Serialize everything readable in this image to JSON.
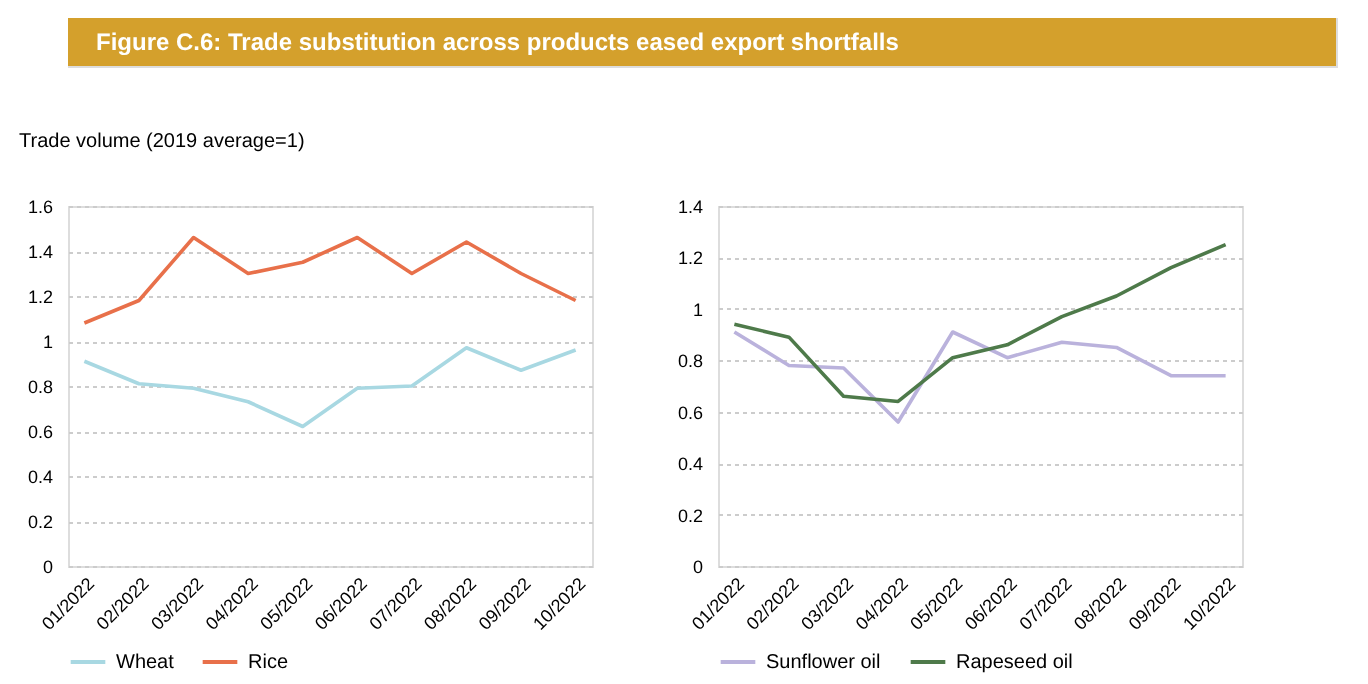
{
  "chart_data": [
    {
      "type": "line",
      "title": "Figure C.6: Trade substitution across products eased export shortfalls",
      "ylabel": "Trade volume (2019 average=1)",
      "categories": [
        "01/2022",
        "02/2022",
        "03/2022",
        "04/2022",
        "05/2022",
        "06/2022",
        "07/2022",
        "08/2022",
        "09/2022",
        "10/2022"
      ],
      "series": [
        {
          "name": "Wheat",
          "color": "#a8d8e2",
          "values": [
            0.91,
            0.81,
            0.79,
            0.73,
            0.62,
            0.79,
            0.8,
            0.97,
            0.87,
            0.96
          ]
        },
        {
          "name": "Rice",
          "color": "#e8704a",
          "values": [
            1.08,
            1.18,
            1.46,
            1.3,
            1.35,
            1.46,
            1.3,
            1.44,
            1.3,
            1.18
          ]
        }
      ],
      "ylim": [
        0,
        1.6
      ],
      "yticks": [
        0,
        0.2,
        0.4,
        0.6,
        0.8,
        1,
        1.2,
        1.4,
        1.6
      ],
      "grid": "y",
      "legend": "bottom",
      "line_style": "solid",
      "marker": "none"
    },
    {
      "type": "line",
      "categories": [
        "01/2022",
        "02/2022",
        "03/2022",
        "04/2022",
        "05/2022",
        "06/2022",
        "07/2022",
        "08/2022",
        "09/2022",
        "10/2022"
      ],
      "series": [
        {
          "name": "Sunflower oil",
          "color": "#bab2dc",
          "values": [
            0.91,
            0.78,
            0.77,
            0.56,
            0.91,
            0.81,
            0.87,
            0.85,
            0.74,
            0.74
          ]
        },
        {
          "name": "Rapeseed oil",
          "color": "#4e7a4a",
          "values": [
            0.94,
            0.89,
            0.66,
            0.64,
            0.81,
            0.86,
            0.97,
            1.05,
            1.16,
            1.25
          ]
        }
      ],
      "ylim": [
        0,
        1.4
      ],
      "yticks": [
        0,
        0.2,
        0.4,
        0.6,
        0.8,
        1,
        1.2,
        1.4
      ],
      "grid": "y",
      "legend": "bottom",
      "line_style": "solid",
      "marker": "none"
    }
  ]
}
